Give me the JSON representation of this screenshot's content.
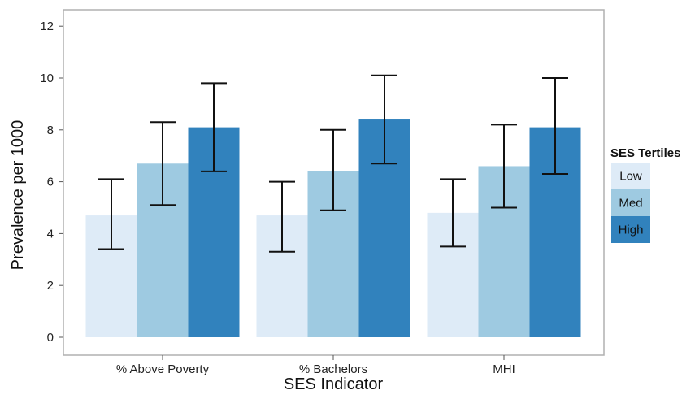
{
  "chart_data": {
    "type": "bar",
    "categories": [
      "% Above Poverty",
      "% Bachelors",
      "MHI"
    ],
    "series": [
      {
        "name": "Low",
        "values": [
          4.7,
          4.7,
          4.8
        ],
        "lower": [
          3.4,
          3.3,
          3.5
        ],
        "upper": [
          6.1,
          6.0,
          6.1
        ],
        "color": "#deebf7"
      },
      {
        "name": "Med",
        "values": [
          6.7,
          6.4,
          6.6
        ],
        "lower": [
          5.1,
          4.9,
          5.0
        ],
        "upper": [
          8.3,
          8.0,
          8.2
        ],
        "color": "#9ecae1"
      },
      {
        "name": "High",
        "values": [
          8.1,
          8.4,
          8.1
        ],
        "lower": [
          6.4,
          6.7,
          6.3
        ],
        "upper": [
          9.8,
          10.1,
          10.0
        ],
        "color": "#3182bd"
      }
    ],
    "xlabel": "SES Indicator",
    "ylabel": "Prevalence per 1000",
    "ylim": [
      -0.5,
      12.5
    ],
    "yticks": [
      "0",
      "2",
      "4",
      "6",
      "8",
      "10",
      "12"
    ],
    "legend": {
      "title": "SES Tertiles",
      "position": "right"
    },
    "grid": false,
    "error_bars": true
  }
}
